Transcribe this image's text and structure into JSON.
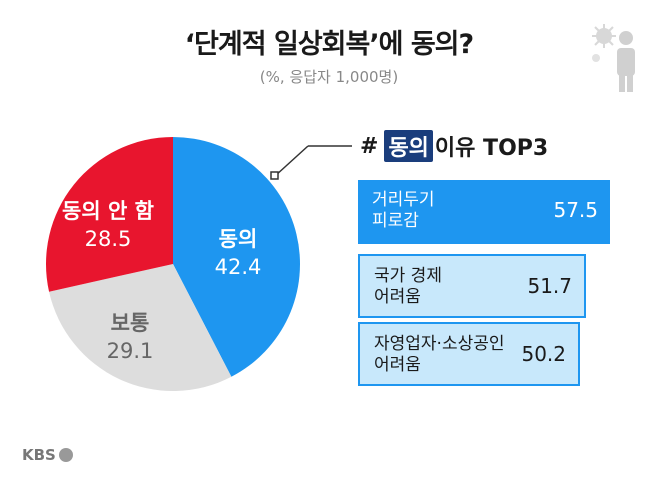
{
  "title": "‘단계적 일상회복’에 동의?",
  "subtitle": "(%, 응답자 1,000명)",
  "chart_data": [
    {
      "type": "pie",
      "title": "",
      "slices": [
        {
          "label": "동의",
          "value": 42.4,
          "value_text": "42.4",
          "color": "#1e96f0"
        },
        {
          "label": "보통",
          "value": 29.1,
          "value_text": "29.1",
          "color": "#dddddd"
        },
        {
          "label": "동의 안 함",
          "value": 28.5,
          "value_text": "28.5",
          "color": "#e8152e"
        }
      ]
    },
    {
      "type": "bar",
      "orientation": "horizontal",
      "title_prefix": "#",
      "title_tag": "동의",
      "title": "이유 TOP3",
      "categories": [
        "거리두기 피로감",
        "국가 경제 어려움",
        "자영업자·소상공인 어려움"
      ],
      "category_lines": [
        [
          "거리두기",
          "피로감"
        ],
        [
          "국가 경제",
          "어려움"
        ],
        [
          "자영업자·소상공인",
          "어려움"
        ]
      ],
      "values": [
        57.5,
        51.7,
        50.2
      ],
      "value_texts": [
        "57.5",
        "51.7",
        "50.2"
      ]
    }
  ],
  "logo": {
    "text": "KBS"
  },
  "colors": {
    "accent": "#1e96f0",
    "negative": "#e8152e",
    "neutral": "#dddddd",
    "tag": "#1a3d7c"
  }
}
